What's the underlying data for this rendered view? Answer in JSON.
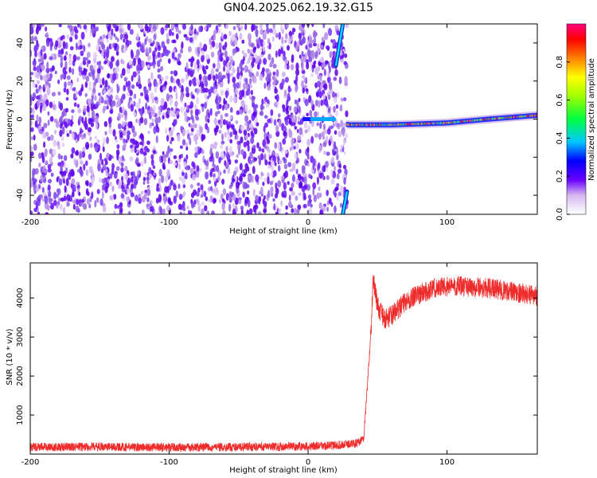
{
  "title": "GN04.2025.062.19.32.G15",
  "chart_data": [
    {
      "type": "heatmap",
      "xlabel": "Height of straight line (km)",
      "ylabel": "Frequency (Hz)",
      "xlim": [
        -200,
        165
      ],
      "ylim": [
        -50,
        50
      ],
      "x_ticks": [
        -200,
        -100,
        0,
        100
      ],
      "y_ticks": [
        -40,
        -20,
        0,
        20,
        40
      ],
      "colorbar": {
        "label": "Normalized spectral amplitude",
        "range": [
          0,
          1
        ],
        "ticks": [
          0.0,
          0.2,
          0.4,
          0.6,
          0.8
        ]
      },
      "features": {
        "noise_region_x": [
          -200,
          28
        ],
        "dominant_line": [
          {
            "x": 0,
            "y": 0
          },
          {
            "x": 30,
            "y": -3
          },
          {
            "x": 60,
            "y": -3
          },
          {
            "x": 100,
            "y": -2
          },
          {
            "x": 130,
            "y": 0
          },
          {
            "x": 165,
            "y": 2
          }
        ],
        "aliased_line": [
          {
            "x": 20,
            "y": 28
          },
          {
            "x": 25,
            "y": 50
          },
          {
            "x": 25,
            "y": -50
          },
          {
            "x": 28,
            "y": -38
          }
        ]
      }
    },
    {
      "type": "line",
      "xlabel": "Height of straight line (km)",
      "ylabel": "SNR (10 * v/v)",
      "xlim": [
        -200,
        165
      ],
      "ylim": [
        0,
        4900
      ],
      "x_ticks": [
        -200,
        -100,
        0,
        100
      ],
      "y_ticks": [
        1000,
        2000,
        3000,
        4000
      ],
      "color": "#ee2c2c",
      "series": [
        {
          "x": [
            -200,
            -150,
            -100,
            -50,
            0,
            20,
            35,
            40,
            42,
            45,
            47,
            50,
            55,
            60,
            70,
            80,
            90,
            100,
            110,
            120,
            130,
            140,
            150,
            165
          ],
          "y": [
            180,
            190,
            170,
            180,
            200,
            220,
            280,
            400,
            1400,
            3000,
            4500,
            3800,
            3450,
            3550,
            3900,
            4100,
            4250,
            4300,
            4300,
            4280,
            4250,
            4200,
            4150,
            4050
          ]
        }
      ]
    }
  ]
}
